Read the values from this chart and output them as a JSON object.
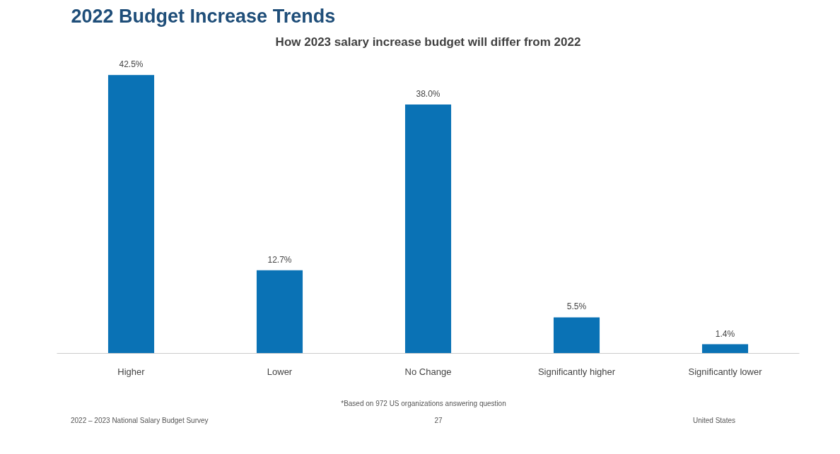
{
  "chart_data": {
    "type": "bar",
    "title": "2022 Budget Increase Trends",
    "subtitle": "How 2023 salary increase budget will differ from 2022",
    "categories": [
      "Higher",
      "Lower",
      "No Change",
      "Significantly higher",
      "Significantly lower"
    ],
    "values": [
      42.5,
      12.7,
      38.0,
      5.5,
      1.4
    ],
    "value_labels": [
      "42.5%",
      "12.7%",
      "38.0%",
      "5.5%",
      "1.4%"
    ],
    "color": "#0a72b5",
    "annotations": [
      "*Based on 972 US organizations answering question",
      "2022 – 2023 National Salary Budget Survey",
      "27",
      "United States"
    ]
  }
}
